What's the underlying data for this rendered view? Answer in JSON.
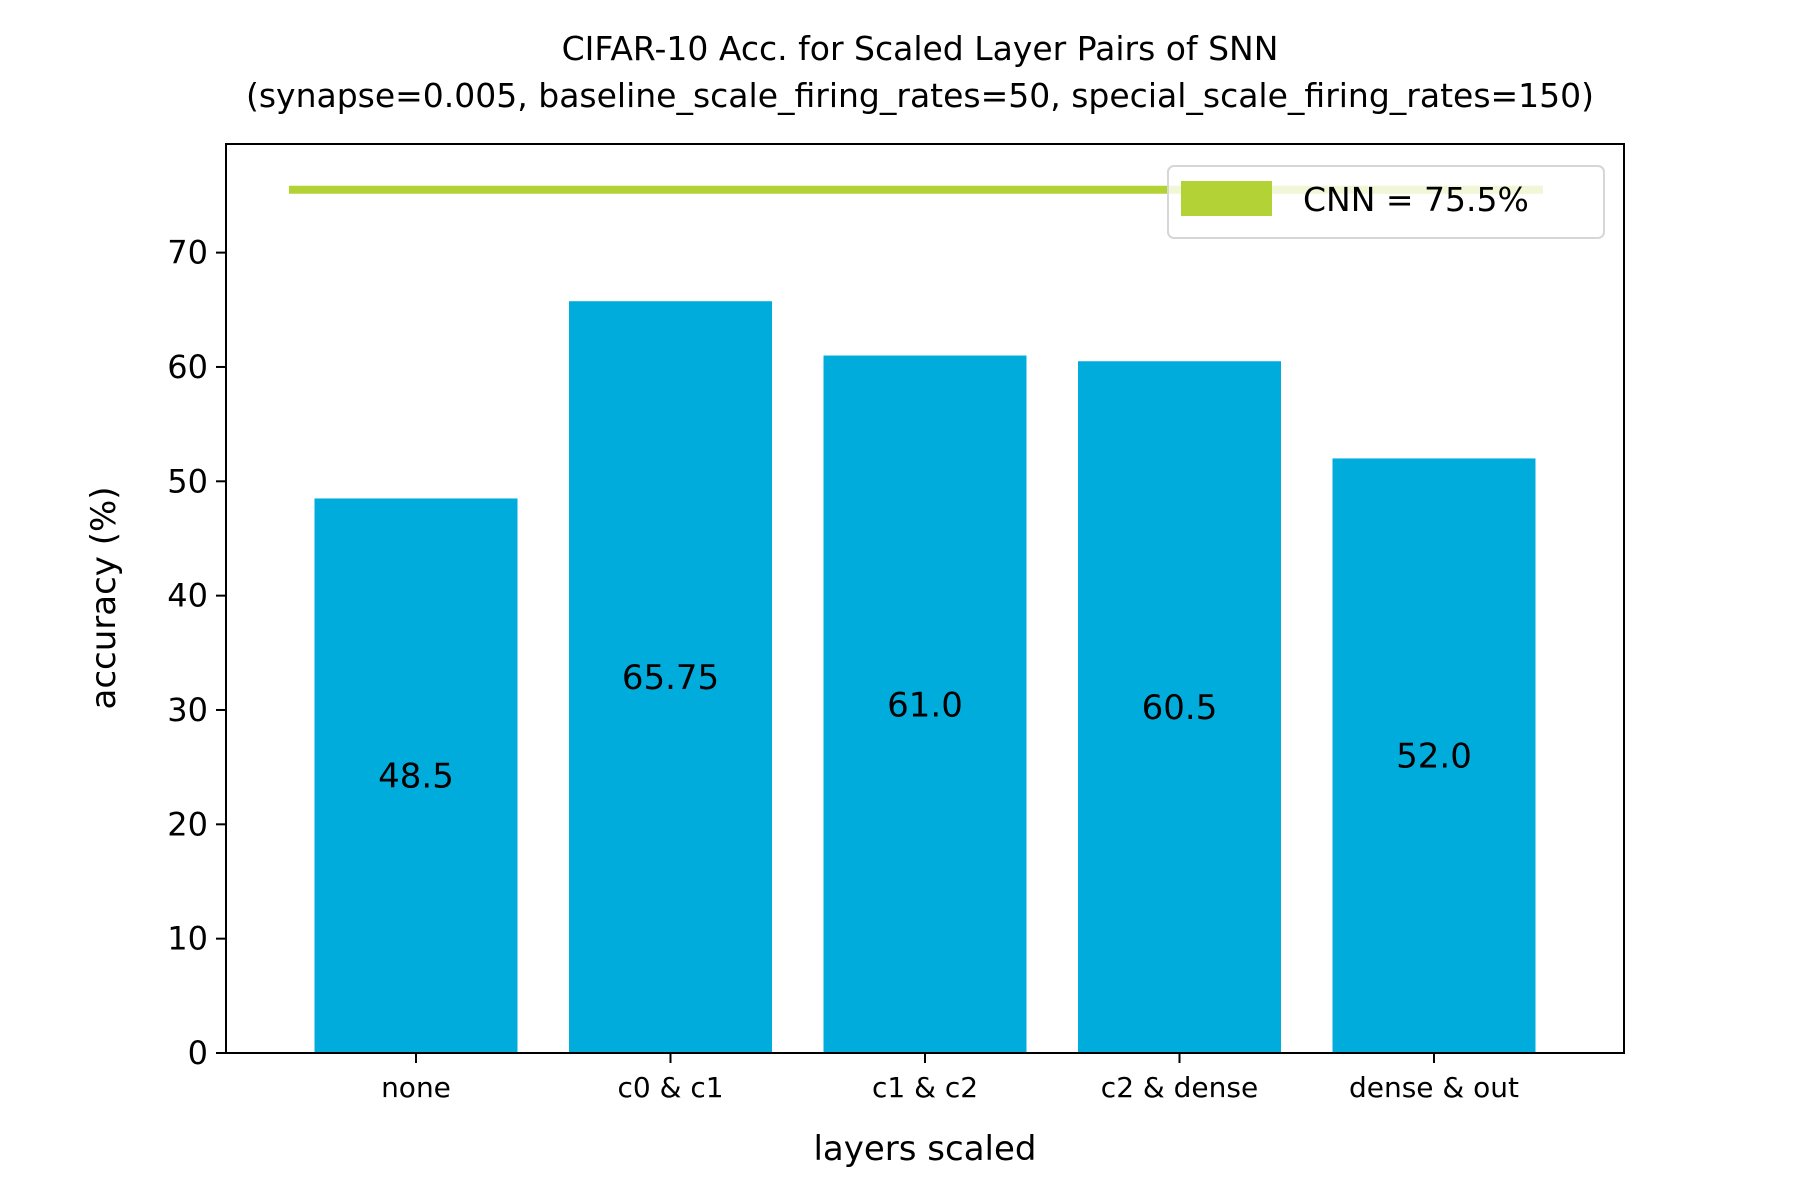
{
  "chart_data": {
    "type": "bar",
    "title": "CIFAR-10 Acc. for Scaled Layer Pairs of SNN",
    "subtitle": "(synapse=0.005, baseline_scale_firing_rates=50, special_scale_firing_rates=150)",
    "xlabel": "layers scaled",
    "ylabel": "accuracy (%)",
    "categories": [
      "none",
      "c0 & c1",
      "c1 & c2",
      "c2 & dense",
      "dense & out"
    ],
    "values": [
      48.5,
      65.75,
      61.0,
      60.5,
      52.0
    ],
    "data_labels": [
      "48.5",
      "65.75",
      "61.0",
      "60.5",
      "52.0"
    ],
    "ylim": [
      0,
      79.5
    ],
    "yticks": [
      0,
      10,
      20,
      30,
      40,
      50,
      60,
      70
    ],
    "bar_color": "#00acdc",
    "reference_line": {
      "value": 75.5,
      "color": "#b2d235",
      "label": "CNN = 75.5%"
    },
    "legend": {
      "position": "top-right",
      "entries": [
        "CNN = 75.5%"
      ]
    },
    "grid": false
  }
}
